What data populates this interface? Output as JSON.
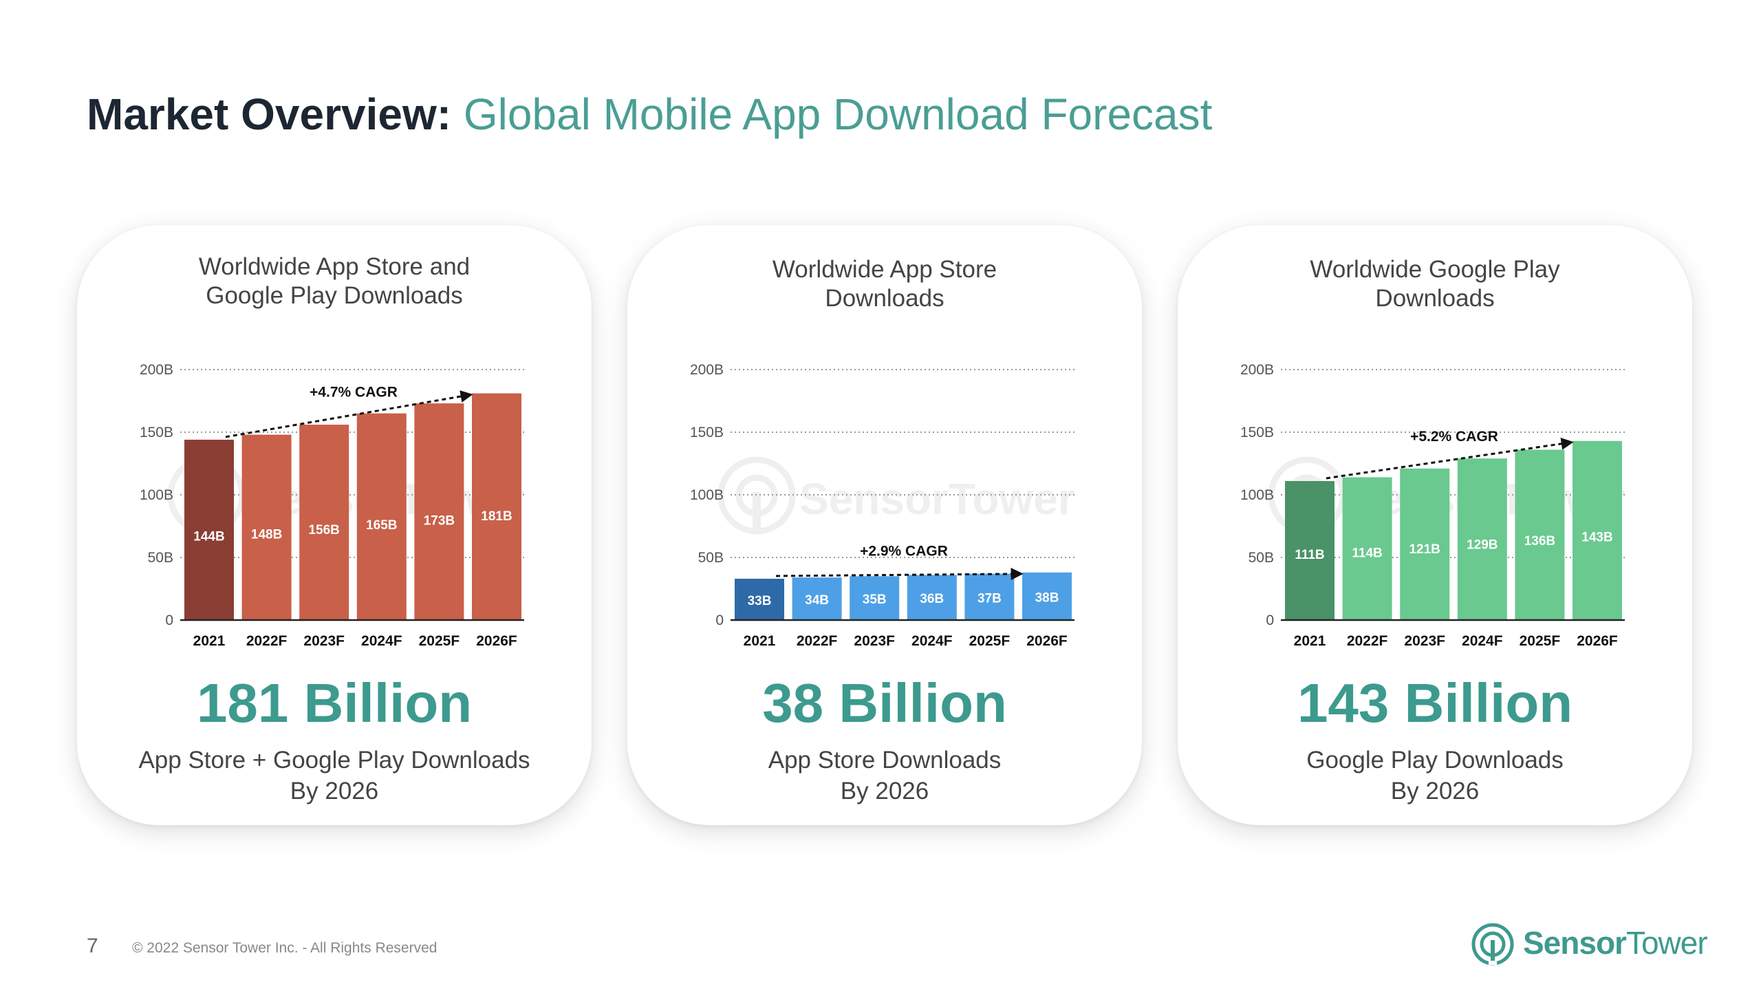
{
  "header": {
    "title_strong": "Market Overview:",
    "title_light": " Global Mobile App Download Forecast"
  },
  "colors": {
    "accent": "#3d9a8e",
    "combined_first": "#8b3e33",
    "combined_rest": "#c96049",
    "appstore_first": "#2d6aa7",
    "appstore_rest": "#4ea0e6",
    "googleplay_first": "#4a9268",
    "googleplay_rest": "#6ac98f"
  },
  "cards": [
    {
      "title_line1": "Worldwide App Store and",
      "title_line2": "Google Play Downloads",
      "big_number": "181 Billion",
      "caption_line1": "App Store + Google Play Downloads",
      "caption_line2": "By 2026",
      "watermark": "SensorTower"
    },
    {
      "title_line1": "Worldwide App Store",
      "title_line2": "Downloads",
      "big_number": "38 Billion",
      "caption_line1": "App Store Downloads",
      "caption_line2": "By 2026",
      "watermark": "SensorTower"
    },
    {
      "title_line1": "Worldwide Google Play",
      "title_line2": "Downloads",
      "big_number": "143 Billion",
      "caption_line1": "Google Play Downloads",
      "caption_line2": "By 2026",
      "watermark": "SensorTower"
    }
  ],
  "chart_data": [
    {
      "type": "bar",
      "title": "Worldwide App Store and Google Play Downloads",
      "categories": [
        "2021",
        "2022F",
        "2023F",
        "2024F",
        "2025F",
        "2026F"
      ],
      "values": [
        144,
        148,
        156,
        165,
        173,
        181
      ],
      "labels": [
        "144B",
        "148B",
        "156B",
        "165B",
        "173B",
        "181B"
      ],
      "yticks": [
        0,
        50,
        100,
        150,
        200
      ],
      "ytick_labels": [
        "0",
        "50B",
        "100B",
        "150B",
        "200B"
      ],
      "ylim": [
        0,
        200
      ],
      "annotation": "+4.7% CAGR",
      "first_color": "#8b3e33",
      "bar_color": "#c96049",
      "grid": true
    },
    {
      "type": "bar",
      "title": "Worldwide App Store Downloads",
      "categories": [
        "2021",
        "2022F",
        "2023F",
        "2024F",
        "2025F",
        "2026F"
      ],
      "values": [
        33,
        34,
        35,
        36,
        37,
        38
      ],
      "labels": [
        "33B",
        "34B",
        "35B",
        "36B",
        "37B",
        "38B"
      ],
      "yticks": [
        0,
        50,
        100,
        150,
        200
      ],
      "ytick_labels": [
        "0",
        "50B",
        "100B",
        "150B",
        "200B"
      ],
      "ylim": [
        0,
        200
      ],
      "annotation": "+2.9% CAGR",
      "first_color": "#2d6aa7",
      "bar_color": "#4ea0e6",
      "grid": true
    },
    {
      "type": "bar",
      "title": "Worldwide Google Play Downloads",
      "categories": [
        "2021",
        "2022F",
        "2023F",
        "2024F",
        "2025F",
        "2026F"
      ],
      "values": [
        111,
        114,
        121,
        129,
        136,
        143
      ],
      "labels": [
        "111B",
        "114B",
        "121B",
        "129B",
        "136B",
        "143B"
      ],
      "yticks": [
        0,
        50,
        100,
        150,
        200
      ],
      "ytick_labels": [
        "0",
        "50B",
        "100B",
        "150B",
        "200B"
      ],
      "ylim": [
        0,
        200
      ],
      "annotation": "+5.2% CAGR",
      "first_color": "#4a9268",
      "bar_color": "#6ac98f",
      "grid": true
    }
  ],
  "footer": {
    "page_number": "7",
    "copyright": "© 2022 Sensor Tower Inc. - All Rights Reserved",
    "logo_bold": "Sensor",
    "logo_light": "Tower"
  }
}
